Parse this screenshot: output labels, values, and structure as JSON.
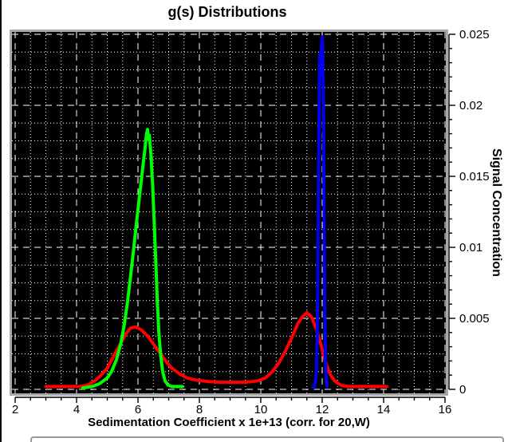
{
  "chart_data": {
    "type": "line",
    "title": "g(s) Distributions",
    "xlabel": "Sedimentation Coefficient x 1e+13 (corr. for 20,W)",
    "ylabel": "Signal Concentration",
    "xlim": [
      2,
      16
    ],
    "ylim": [
      0,
      0.025
    ],
    "x_major_ticks": [
      2,
      4,
      6,
      8,
      10,
      12,
      14,
      16
    ],
    "x_tick_labels": [
      "2",
      "4",
      "6",
      "8",
      "10",
      "12",
      "14",
      "16"
    ],
    "x_minor_step": 0.5,
    "y_major_ticks": [
      0,
      0.005,
      0.01,
      0.015,
      0.02,
      0.025
    ],
    "y_tick_labels": [
      "0",
      "0.005",
      "0.01",
      "0.015",
      "0.02",
      "0.025"
    ],
    "y_minor_tick_step": 0.001,
    "y_minor_grid_step": 0.00125,
    "grid": {
      "on": true,
      "major_style": "dashed",
      "minor_style": "dotted",
      "color": "#ffffff"
    },
    "legend_position": "none",
    "colors": {
      "plot_bg": "#000000",
      "frame": "#a8a8a8",
      "axis": "#000000"
    },
    "series": [
      {
        "name": "red-distribution",
        "color": "#ff0000",
        "points": [
          [
            3.0,
            0.0002
          ],
          [
            3.4,
            0.0002
          ],
          [
            3.8,
            0.0002
          ],
          [
            4.1,
            0.0002
          ],
          [
            4.35,
            0.0003
          ],
          [
            4.6,
            0.0006
          ],
          [
            4.8,
            0.001
          ],
          [
            5.0,
            0.0015
          ],
          [
            5.2,
            0.0023
          ],
          [
            5.4,
            0.0031
          ],
          [
            5.6,
            0.0039
          ],
          [
            5.75,
            0.0043
          ],
          [
            5.92,
            0.0044
          ],
          [
            6.1,
            0.0042
          ],
          [
            6.3,
            0.0038
          ],
          [
            6.5,
            0.0032
          ],
          [
            6.7,
            0.0026
          ],
          [
            6.9,
            0.002
          ],
          [
            7.1,
            0.0015
          ],
          [
            7.35,
            0.0011
          ],
          [
            7.6,
            0.0008
          ],
          [
            7.9,
            0.00065
          ],
          [
            8.3,
            0.00055
          ],
          [
            8.7,
            0.0005
          ],
          [
            9.1,
            0.0005
          ],
          [
            9.5,
            0.0005
          ],
          [
            9.9,
            0.0006
          ],
          [
            10.15,
            0.0008
          ],
          [
            10.4,
            0.0013
          ],
          [
            10.6,
            0.0019
          ],
          [
            10.8,
            0.0027
          ],
          [
            11.0,
            0.0036
          ],
          [
            11.2,
            0.0046
          ],
          [
            11.35,
            0.0051
          ],
          [
            11.5,
            0.0054
          ],
          [
            11.65,
            0.0051
          ],
          [
            11.8,
            0.0043
          ],
          [
            11.95,
            0.0032
          ],
          [
            12.1,
            0.002
          ],
          [
            12.25,
            0.0011
          ],
          [
            12.4,
            0.0006
          ],
          [
            12.6,
            0.0003
          ],
          [
            12.85,
            0.0002
          ],
          [
            13.2,
            0.0002
          ],
          [
            13.6,
            0.0002
          ],
          [
            14.1,
            0.0002
          ]
        ]
      },
      {
        "name": "green-distribution",
        "color": "#00ff00",
        "points": [
          [
            4.2,
            0.0001
          ],
          [
            4.5,
            0.0002
          ],
          [
            4.75,
            0.0004
          ],
          [
            5.0,
            0.0008
          ],
          [
            5.15,
            0.0013
          ],
          [
            5.3,
            0.0021
          ],
          [
            5.45,
            0.0033
          ],
          [
            5.55,
            0.0045
          ],
          [
            5.65,
            0.006
          ],
          [
            5.75,
            0.0078
          ],
          [
            5.85,
            0.0097
          ],
          [
            5.95,
            0.0117
          ],
          [
            6.05,
            0.0136
          ],
          [
            6.15,
            0.0155
          ],
          [
            6.22,
            0.0168
          ],
          [
            6.28,
            0.018
          ],
          [
            6.31,
            0.0183
          ],
          [
            6.34,
            0.0176
          ],
          [
            6.37,
            0.0179
          ],
          [
            6.42,
            0.0166
          ],
          [
            6.48,
            0.0143
          ],
          [
            6.53,
            0.0117
          ],
          [
            6.58,
            0.009
          ],
          [
            6.63,
            0.0062
          ],
          [
            6.68,
            0.004
          ],
          [
            6.74,
            0.0024
          ],
          [
            6.8,
            0.0013
          ],
          [
            6.88,
            0.0006
          ],
          [
            6.98,
            0.0003
          ],
          [
            7.1,
            0.0002
          ],
          [
            7.45,
            0.0002
          ]
        ]
      },
      {
        "name": "blue-distribution",
        "color": "#0000ee",
        "points": [
          [
            11.72,
            0.0001
          ],
          [
            11.77,
            0.0004
          ],
          [
            11.81,
            0.0012
          ],
          [
            11.84,
            0.004
          ],
          [
            11.86,
            0.009
          ],
          [
            11.88,
            0.015
          ],
          [
            11.9,
            0.0205
          ],
          [
            11.92,
            0.0236
          ],
          [
            11.94,
            0.0218
          ],
          [
            11.96,
            0.023
          ],
          [
            11.98,
            0.0243
          ],
          [
            12.0,
            0.0248
          ],
          [
            12.02,
            0.024
          ],
          [
            12.04,
            0.0196
          ],
          [
            12.06,
            0.013
          ],
          [
            12.08,
            0.0065
          ],
          [
            12.1,
            0.0025
          ],
          [
            12.13,
            0.0008
          ],
          [
            12.16,
            0.0002
          ]
        ]
      }
    ]
  }
}
